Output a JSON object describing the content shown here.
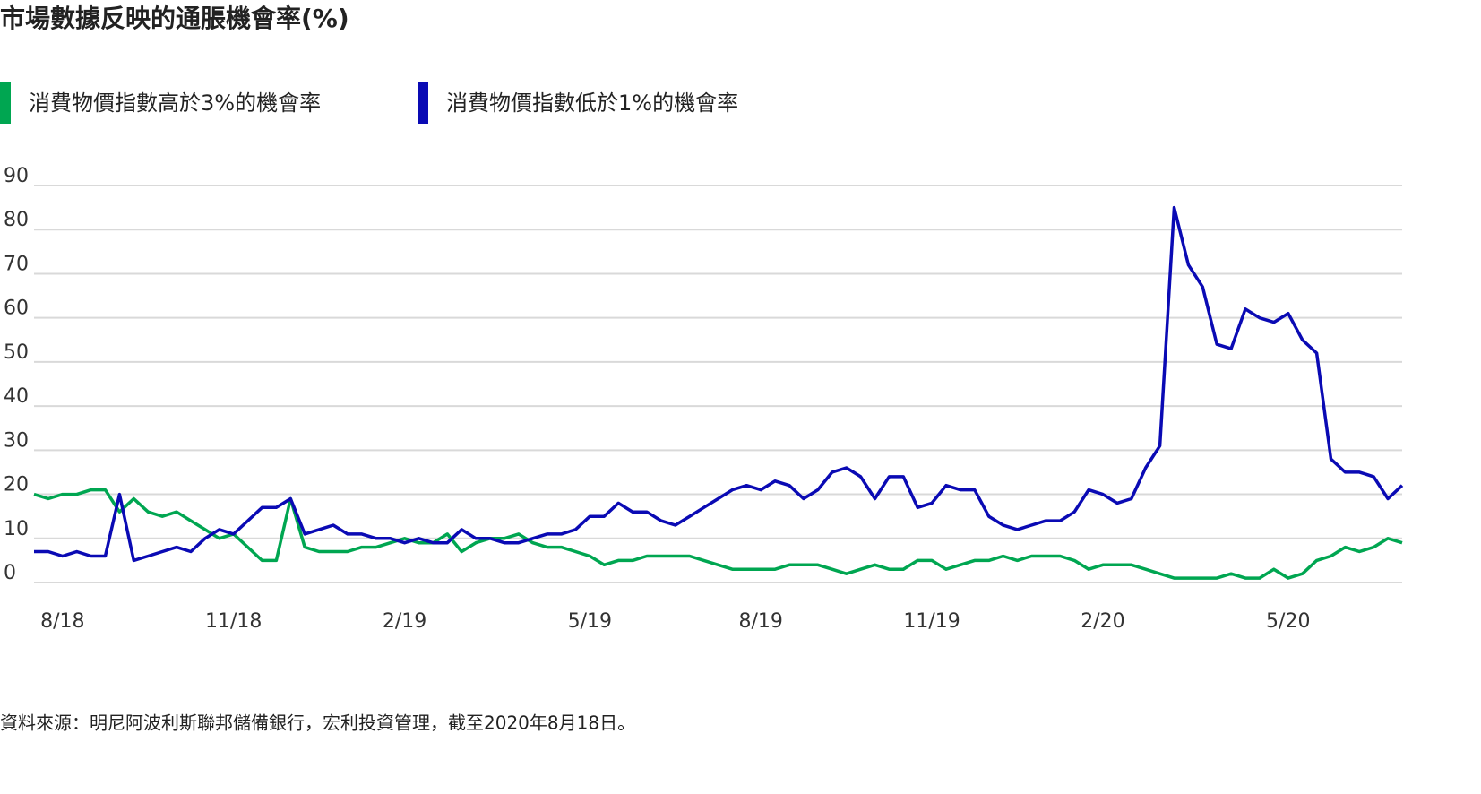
{
  "chart_data": {
    "type": "line",
    "title": "市場數據反映的通脹機會率(%)",
    "source": "資料來源：明尼阿波利斯聯邦儲備銀行，宏利投資管理，截至2020年8月18日。",
    "categories": [
      null,
      null,
      "8/18",
      null,
      null,
      null,
      null,
      null,
      null,
      null,
      null,
      null,
      null,
      null,
      "11/18",
      null,
      null,
      null,
      null,
      null,
      null,
      null,
      null,
      null,
      null,
      null,
      "2/19",
      null,
      null,
      null,
      null,
      null,
      null,
      null,
      null,
      null,
      null,
      null,
      null,
      "5/19",
      null,
      null,
      null,
      null,
      null,
      null,
      null,
      null,
      null,
      null,
      null,
      "8/19",
      null,
      null,
      null,
      null,
      null,
      null,
      null,
      null,
      null,
      null,
      null,
      "11/19",
      null,
      null,
      null,
      null,
      null,
      null,
      null,
      null,
      null,
      null,
      null,
      "2/20",
      null,
      null,
      null,
      null,
      null,
      null,
      null,
      null,
      null,
      null,
      null,
      null,
      "5/20",
      null,
      null,
      null,
      null,
      null,
      null,
      null,
      null
    ],
    "series": [
      {
        "name": "消費物價指數高於3%的機會率",
        "color": "#00a651",
        "values": [
          20,
          19,
          20,
          20,
          21,
          21,
          16,
          19,
          16,
          15,
          16,
          14,
          12,
          10,
          11,
          8,
          5,
          5,
          19,
          8,
          7,
          7,
          7,
          8,
          8,
          9,
          10,
          9,
          9,
          11,
          7,
          9,
          10,
          10,
          11,
          9,
          8,
          8,
          7,
          6,
          4,
          5,
          5,
          6,
          6,
          6,
          6,
          5,
          4,
          3,
          3,
          3,
          3,
          4,
          4,
          4,
          3,
          2,
          3,
          4,
          3,
          3,
          5,
          5,
          3,
          4,
          5,
          5,
          6,
          5,
          6,
          6,
          6,
          5,
          3,
          4,
          4,
          4,
          3,
          2,
          1,
          1,
          1,
          1,
          2,
          1,
          1,
          3,
          1,
          2,
          5,
          6,
          8,
          7,
          8,
          10,
          9
        ]
      },
      {
        "name": "消費物價指數低於1%的機會率",
        "color": "#0a0ab4",
        "values": [
          7,
          7,
          6,
          7,
          6,
          6,
          20,
          5,
          6,
          7,
          8,
          7,
          10,
          12,
          11,
          14,
          17,
          17,
          19,
          11,
          12,
          13,
          11,
          11,
          10,
          10,
          9,
          10,
          9,
          9,
          12,
          10,
          10,
          9,
          9,
          10,
          11,
          11,
          12,
          15,
          15,
          18,
          16,
          16,
          14,
          13,
          15,
          17,
          19,
          21,
          22,
          21,
          23,
          22,
          19,
          21,
          25,
          26,
          24,
          19,
          24,
          24,
          17,
          18,
          22,
          21,
          21,
          15,
          13,
          12,
          13,
          14,
          14,
          16,
          21,
          20,
          18,
          19,
          26,
          31,
          85,
          72,
          67,
          54,
          53,
          62,
          60,
          59,
          61,
          55,
          52,
          28,
          25,
          25,
          24,
          19,
          22
        ]
      }
    ],
    "ylim": [
      0,
      90
    ],
    "yticks": [
      0,
      10,
      20,
      30,
      40,
      50,
      60,
      70,
      80,
      90
    ],
    "grid": true
  }
}
